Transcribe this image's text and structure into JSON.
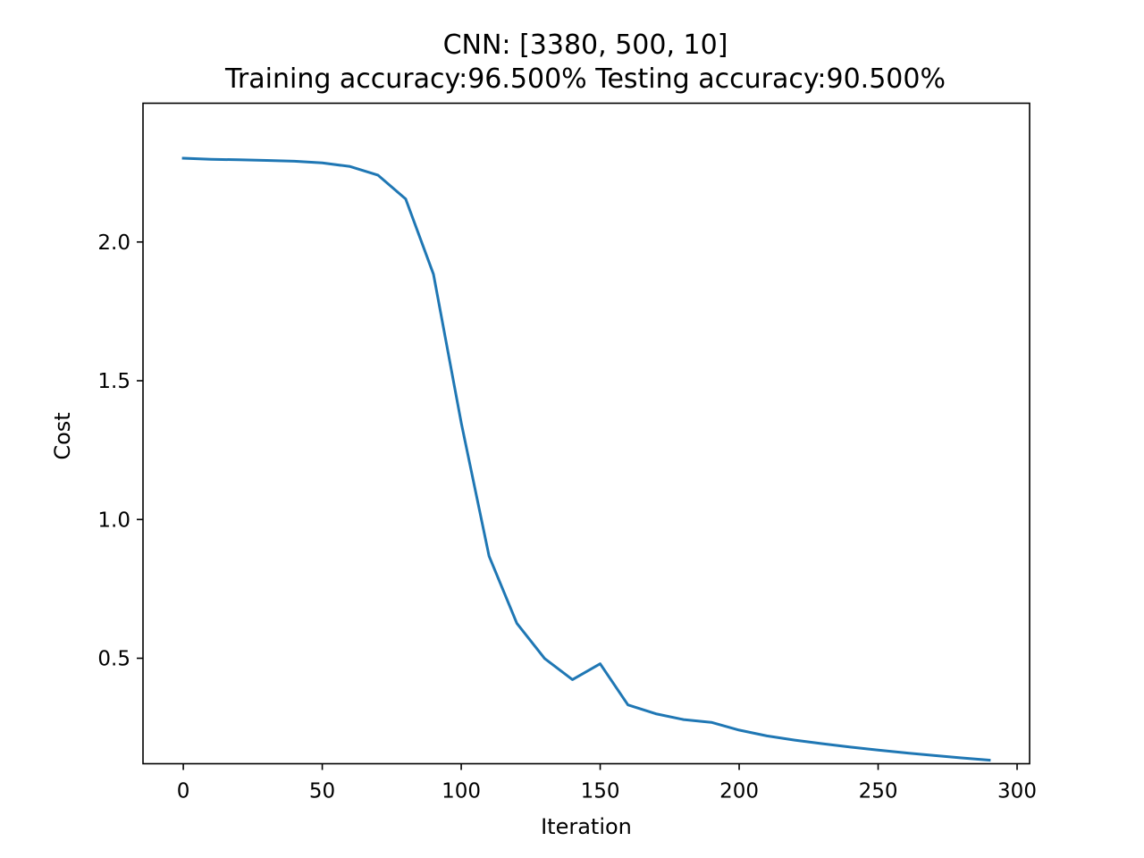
{
  "chart_data": {
    "type": "line",
    "title": "CNN: [3380, 500, 10]",
    "subtitle": "Training accuracy:96.500% Testing accuracy:90.500%",
    "xlabel": "Iteration",
    "ylabel": "Cost",
    "xlim": [
      -14.5,
      304.5
    ],
    "ylim": [
      0.12,
      2.5
    ],
    "xticks": [
      0,
      50,
      100,
      150,
      200,
      250,
      300
    ],
    "xtick_labels": [
      "0",
      "50",
      "100",
      "150",
      "200",
      "250",
      "300"
    ],
    "yticks": [
      0.5,
      1.0,
      1.5,
      2.0
    ],
    "ytick_labels": [
      "0.5",
      "1.0",
      "1.5",
      "2.0"
    ],
    "grid": false,
    "series": [
      {
        "color": "#1f77b4",
        "x": [
          0,
          10,
          20,
          30,
          40,
          50,
          60,
          70,
          80,
          90,
          100,
          110,
          120,
          130,
          140,
          150,
          160,
          170,
          180,
          190,
          200,
          210,
          220,
          230,
          240,
          250,
          260,
          270,
          280,
          290
        ],
        "y": [
          2.302,
          2.298,
          2.296,
          2.294,
          2.291,
          2.285,
          2.272,
          2.241,
          2.155,
          1.884,
          1.348,
          0.868,
          0.626,
          0.499,
          0.423,
          0.48,
          0.332,
          0.3,
          0.279,
          0.269,
          0.241,
          0.22,
          0.205,
          0.192,
          0.18,
          0.169,
          0.159,
          0.15,
          0.141,
          0.133
        ]
      }
    ]
  }
}
